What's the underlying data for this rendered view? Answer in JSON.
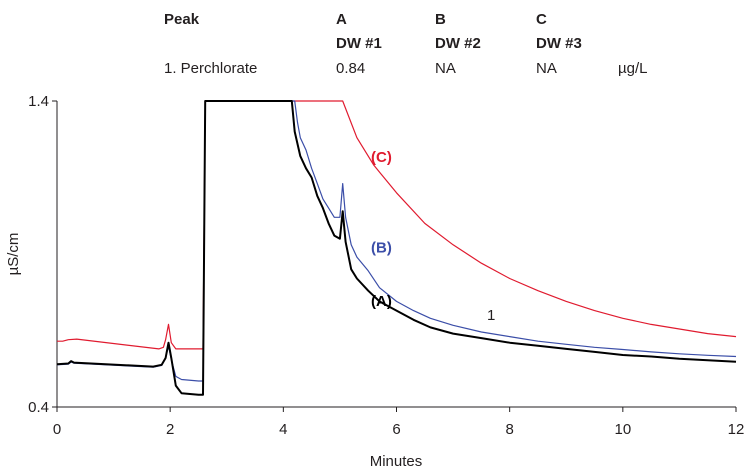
{
  "table": {
    "header": {
      "peak": "Peak",
      "a": "A",
      "b": "B",
      "c": "C"
    },
    "subheader": {
      "a": "DW #1",
      "b": "DW #2",
      "c": "DW #3"
    },
    "rows": [
      {
        "peak": "1. Perchlorate",
        "a": "0.84",
        "b": "NA",
        "c": "NA",
        "unit": "µg/L"
      }
    ]
  },
  "chart_data": {
    "type": "line",
    "xlabel": "Minutes",
    "ylabel": "µS/cm",
    "xlim": [
      0,
      12
    ],
    "ylim": [
      0.4,
      1.4
    ],
    "x_ticks": [
      "0",
      "2",
      "4",
      "6",
      "8",
      "10",
      "12"
    ],
    "y_ticks": [
      "0.4",
      "1.4"
    ],
    "grid": false,
    "series": [
      {
        "name": "(A)",
        "color": "#000000",
        "points": [
          [
            0,
            0.54
          ],
          [
            0.2,
            0.542
          ],
          [
            0.25,
            0.55
          ],
          [
            0.3,
            0.545
          ],
          [
            1.7,
            0.532
          ],
          [
            1.85,
            0.538
          ],
          [
            1.92,
            0.56
          ],
          [
            1.97,
            0.61
          ],
          [
            2.02,
            0.56
          ],
          [
            2.1,
            0.47
          ],
          [
            2.2,
            0.445
          ],
          [
            2.5,
            0.44
          ],
          [
            2.58,
            0.44
          ],
          [
            2.62,
            1.4
          ],
          [
            4.15,
            1.4
          ],
          [
            4.2,
            1.3
          ],
          [
            4.3,
            1.22
          ],
          [
            4.4,
            1.18
          ],
          [
            4.5,
            1.15
          ],
          [
            4.6,
            1.09
          ],
          [
            4.7,
            1.05
          ],
          [
            4.8,
            1.0
          ],
          [
            4.9,
            0.96
          ],
          [
            5.0,
            0.95
          ],
          [
            5.05,
            1.04
          ],
          [
            5.1,
            0.94
          ],
          [
            5.2,
            0.85
          ],
          [
            5.3,
            0.82
          ],
          [
            5.5,
            0.78
          ],
          [
            5.7,
            0.745
          ],
          [
            6.0,
            0.715
          ],
          [
            6.3,
            0.685
          ],
          [
            6.6,
            0.66
          ],
          [
            7.0,
            0.64
          ],
          [
            7.5,
            0.625
          ],
          [
            8.0,
            0.61
          ],
          [
            8.5,
            0.6
          ],
          [
            9.0,
            0.59
          ],
          [
            9.5,
            0.58
          ],
          [
            10.0,
            0.57
          ],
          [
            10.5,
            0.565
          ],
          [
            11.0,
            0.558
          ],
          [
            11.5,
            0.553
          ],
          [
            12.0,
            0.548
          ]
        ]
      },
      {
        "name": "(B)",
        "color": "#3b4ea8",
        "points": [
          [
            0,
            0.538
          ],
          [
            0.2,
            0.54
          ],
          [
            0.25,
            0.547
          ],
          [
            0.3,
            0.543
          ],
          [
            1.7,
            0.53
          ],
          [
            1.85,
            0.536
          ],
          [
            1.92,
            0.56
          ],
          [
            1.97,
            0.6
          ],
          [
            2.02,
            0.555
          ],
          [
            2.1,
            0.5
          ],
          [
            2.2,
            0.49
          ],
          [
            2.5,
            0.485
          ],
          [
            2.58,
            0.485
          ],
          [
            2.62,
            1.4
          ],
          [
            4.2,
            1.4
          ],
          [
            4.25,
            1.33
          ],
          [
            4.3,
            1.28
          ],
          [
            4.4,
            1.24
          ],
          [
            4.5,
            1.18
          ],
          [
            4.6,
            1.13
          ],
          [
            4.7,
            1.08
          ],
          [
            4.8,
            1.05
          ],
          [
            4.9,
            1.02
          ],
          [
            5.0,
            1.02
          ],
          [
            5.05,
            1.13
          ],
          [
            5.1,
            1.02
          ],
          [
            5.2,
            0.93
          ],
          [
            5.3,
            0.89
          ],
          [
            5.5,
            0.845
          ],
          [
            5.7,
            0.79
          ],
          [
            6.0,
            0.745
          ],
          [
            6.3,
            0.715
          ],
          [
            6.6,
            0.69
          ],
          [
            7.0,
            0.667
          ],
          [
            7.5,
            0.645
          ],
          [
            8.0,
            0.63
          ],
          [
            8.5,
            0.615
          ],
          [
            9.0,
            0.605
          ],
          [
            9.5,
            0.595
          ],
          [
            10.0,
            0.588
          ],
          [
            10.5,
            0.58
          ],
          [
            11.0,
            0.574
          ],
          [
            11.5,
            0.569
          ],
          [
            12.0,
            0.565
          ]
        ]
      },
      {
        "name": "(C)",
        "color": "#e01b2f",
        "points": [
          [
            0,
            0.615
          ],
          [
            0.1,
            0.615
          ],
          [
            0.2,
            0.62
          ],
          [
            0.35,
            0.622
          ],
          [
            1.8,
            0.59
          ],
          [
            1.88,
            0.595
          ],
          [
            1.92,
            0.62
          ],
          [
            1.97,
            0.67
          ],
          [
            2.02,
            0.61
          ],
          [
            2.1,
            0.59
          ],
          [
            2.5,
            0.59
          ],
          [
            2.58,
            0.59
          ],
          [
            2.62,
            1.4
          ],
          [
            5.05,
            1.4
          ],
          [
            5.3,
            1.28
          ],
          [
            5.6,
            1.19
          ],
          [
            6.0,
            1.1
          ],
          [
            6.5,
            1.0
          ],
          [
            7.0,
            0.93
          ],
          [
            7.5,
            0.87
          ],
          [
            8.0,
            0.82
          ],
          [
            8.5,
            0.78
          ],
          [
            9.0,
            0.745
          ],
          [
            9.5,
            0.715
          ],
          [
            10.0,
            0.69
          ],
          [
            10.5,
            0.67
          ],
          [
            11.0,
            0.655
          ],
          [
            11.5,
            0.64
          ],
          [
            12.0,
            0.63
          ]
        ]
      }
    ],
    "annotations": [
      {
        "text": "(C)",
        "x": 5.55,
        "y": 1.2,
        "series": "(C)"
      },
      {
        "text": "(B)",
        "x": 5.55,
        "y": 0.905,
        "series": "(B)"
      },
      {
        "text": "(A)",
        "x": 5.55,
        "y": 0.73,
        "series": "(A)"
      },
      {
        "text": "1",
        "x": 7.6,
        "y": 0.685,
        "series": "peak"
      }
    ]
  }
}
